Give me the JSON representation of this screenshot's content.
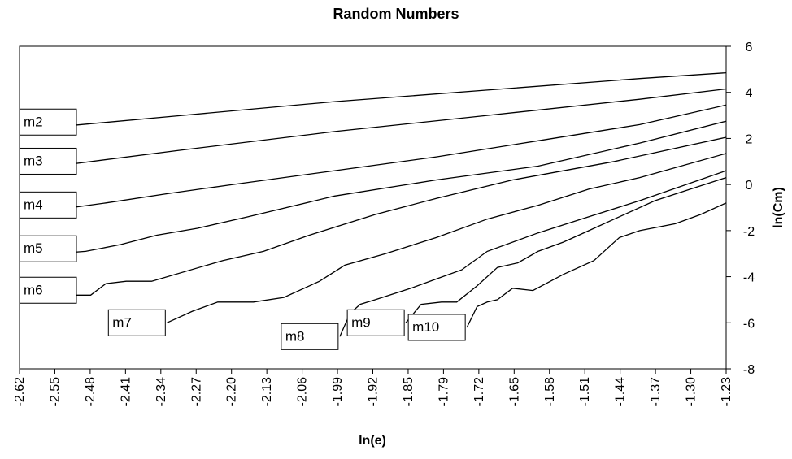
{
  "chart_data": {
    "type": "line",
    "title": "Random Numbers",
    "xlabel": "ln(e)",
    "ylabel": "ln(Cm)",
    "xlim": [
      -2.62,
      -1.23
    ],
    "ylim": [
      -8,
      6
    ],
    "x_ticks": [
      "-2.62",
      "-2.55",
      "-2.48",
      "-2.41",
      "-2.34",
      "-2.27",
      "-2.20",
      "-2.13",
      "-2.06",
      "-1.99",
      "-1.92",
      "-1.85",
      "-1.79",
      "-1.72",
      "-1.65",
      "-1.58",
      "-1.51",
      "-1.44",
      "-1.37",
      "-1.30",
      "-1.23"
    ],
    "y_ticks": [
      "6",
      "4",
      "2",
      "0",
      "-2",
      "-4",
      "-6",
      "-8"
    ],
    "y_axis_side": "right",
    "grid": false,
    "series": [
      {
        "name": "m2",
        "x": [
          -2.55,
          -2.3,
          -2.0,
          -1.7,
          -1.4,
          -1.23
        ],
        "y": [
          2.5,
          3.0,
          3.6,
          4.1,
          4.6,
          4.85
        ]
      },
      {
        "name": "m3",
        "x": [
          -2.55,
          -2.3,
          -2.0,
          -1.7,
          -1.4,
          -1.23
        ],
        "y": [
          0.8,
          1.5,
          2.3,
          3.0,
          3.7,
          4.15
        ]
      },
      {
        "name": "m4",
        "x": [
          -2.55,
          -2.45,
          -2.33,
          -2.2,
          -2.0,
          -1.8,
          -1.6,
          -1.4,
          -1.23
        ],
        "y": [
          -1.1,
          -0.8,
          -0.4,
          0.0,
          0.6,
          1.2,
          1.9,
          2.6,
          3.45
        ]
      },
      {
        "name": "m5",
        "x": [
          -2.55,
          -2.49,
          -2.42,
          -2.35,
          -2.27,
          -2.17,
          -2.0,
          -1.8,
          -1.6,
          -1.4,
          -1.23
        ],
        "y": [
          -3.0,
          -2.9,
          -2.6,
          -2.2,
          -1.9,
          -1.4,
          -0.5,
          0.2,
          0.8,
          1.8,
          2.75
        ]
      },
      {
        "name": "m6",
        "x": [
          -2.55,
          -2.48,
          -2.45,
          -2.41,
          -2.36,
          -2.22,
          -2.14,
          -2.05,
          -1.92,
          -1.8,
          -1.65,
          -1.45,
          -1.23
        ],
        "y": [
          -4.8,
          -4.8,
          -4.3,
          -4.2,
          -4.2,
          -3.3,
          -2.9,
          -2.2,
          -1.3,
          -0.6,
          0.2,
          1.0,
          2.05
        ]
      },
      {
        "name": "m7",
        "x": [
          -2.33,
          -2.28,
          -2.23,
          -2.16,
          -2.1,
          -2.03,
          -1.98,
          -1.9,
          -1.8,
          -1.7,
          -1.6,
          -1.5,
          -1.4,
          -1.23
        ],
        "y": [
          -6.0,
          -5.5,
          -5.1,
          -5.1,
          -4.9,
          -4.2,
          -3.5,
          -3.0,
          -2.3,
          -1.5,
          -0.9,
          -0.2,
          0.3,
          1.35
        ]
      },
      {
        "name": "m8",
        "x": [
          -1.99,
          -1.97,
          -1.95,
          -1.92,
          -1.85,
          -1.8,
          -1.75,
          -1.7,
          -1.6,
          -1.5,
          -1.4,
          -1.23
        ],
        "y": [
          -6.6,
          -5.6,
          -5.2,
          -5.0,
          -4.5,
          -4.1,
          -3.7,
          -2.9,
          -2.1,
          -1.4,
          -0.7,
          0.6
        ]
      },
      {
        "name": "m9",
        "x": [
          -1.86,
          -1.83,
          -1.79,
          -1.76,
          -1.72,
          -1.68,
          -1.64,
          -1.6,
          -1.55,
          -1.5,
          -1.44,
          -1.37,
          -1.3,
          -1.23
        ],
        "y": [
          -6.0,
          -5.2,
          -5.1,
          -5.1,
          -4.4,
          -3.6,
          -3.4,
          -2.9,
          -2.5,
          -2.0,
          -1.4,
          -0.7,
          -0.2,
          0.3
        ]
      },
      {
        "name": "m10",
        "x": [
          -1.74,
          -1.72,
          -1.7,
          -1.68,
          -1.65,
          -1.61,
          -1.55,
          -1.49,
          -1.46,
          -1.44,
          -1.4,
          -1.33,
          -1.28,
          -1.23
        ],
        "y": [
          -6.2,
          -5.3,
          -5.1,
          -5.0,
          -4.5,
          -4.6,
          -3.9,
          -3.3,
          -2.7,
          -2.3,
          -2.0,
          -1.7,
          -1.3,
          -0.8
        ]
      }
    ],
    "labels": [
      {
        "text": "m2",
        "series": "m2"
      },
      {
        "text": "m3",
        "series": "m3"
      },
      {
        "text": "m4",
        "series": "m4"
      },
      {
        "text": "m5",
        "series": "m5"
      },
      {
        "text": "m6",
        "series": "m6"
      },
      {
        "text": "m7",
        "series": "m7"
      },
      {
        "text": "m8",
        "series": "m8"
      },
      {
        "text": "m9",
        "series": "m9"
      },
      {
        "text": "m10",
        "series": "m10"
      }
    ]
  }
}
